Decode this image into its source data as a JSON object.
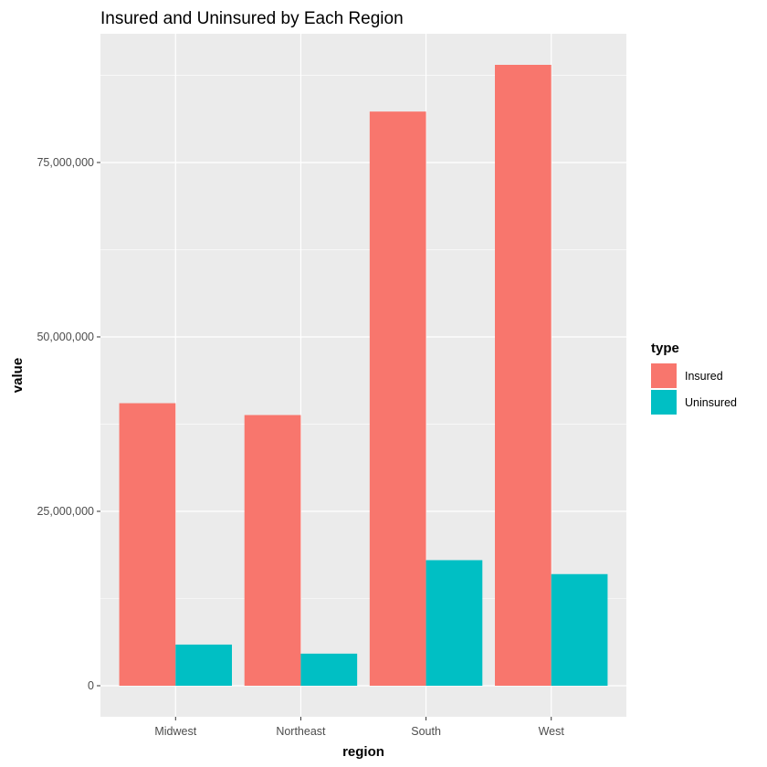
{
  "chart_data": {
    "type": "bar",
    "title": "Insured and Uninsured by Each Region",
    "xlabel": "region",
    "ylabel": "value",
    "categories": [
      "Midwest",
      "Northeast",
      "South",
      "West"
    ],
    "series": [
      {
        "name": "Insured",
        "color": "#F8766D",
        "values": [
          40500000,
          38800000,
          82300000,
          89000000
        ]
      },
      {
        "name": "Uninsured",
        "color": "#00BFC4",
        "values": [
          5900000,
          4600000,
          18000000,
          16000000
        ]
      }
    ],
    "ylim": [
      -4450000,
      93450000
    ],
    "yticks": [
      0,
      25000000,
      50000000,
      75000000
    ],
    "ytick_labels": [
      "0",
      "25,000,000",
      "50,000,000",
      "75,000,000"
    ],
    "grid": true,
    "legend": {
      "title": "type",
      "position": "right"
    },
    "panel_background": "#EBEBEB",
    "grid_color": "#FFFFFF"
  }
}
